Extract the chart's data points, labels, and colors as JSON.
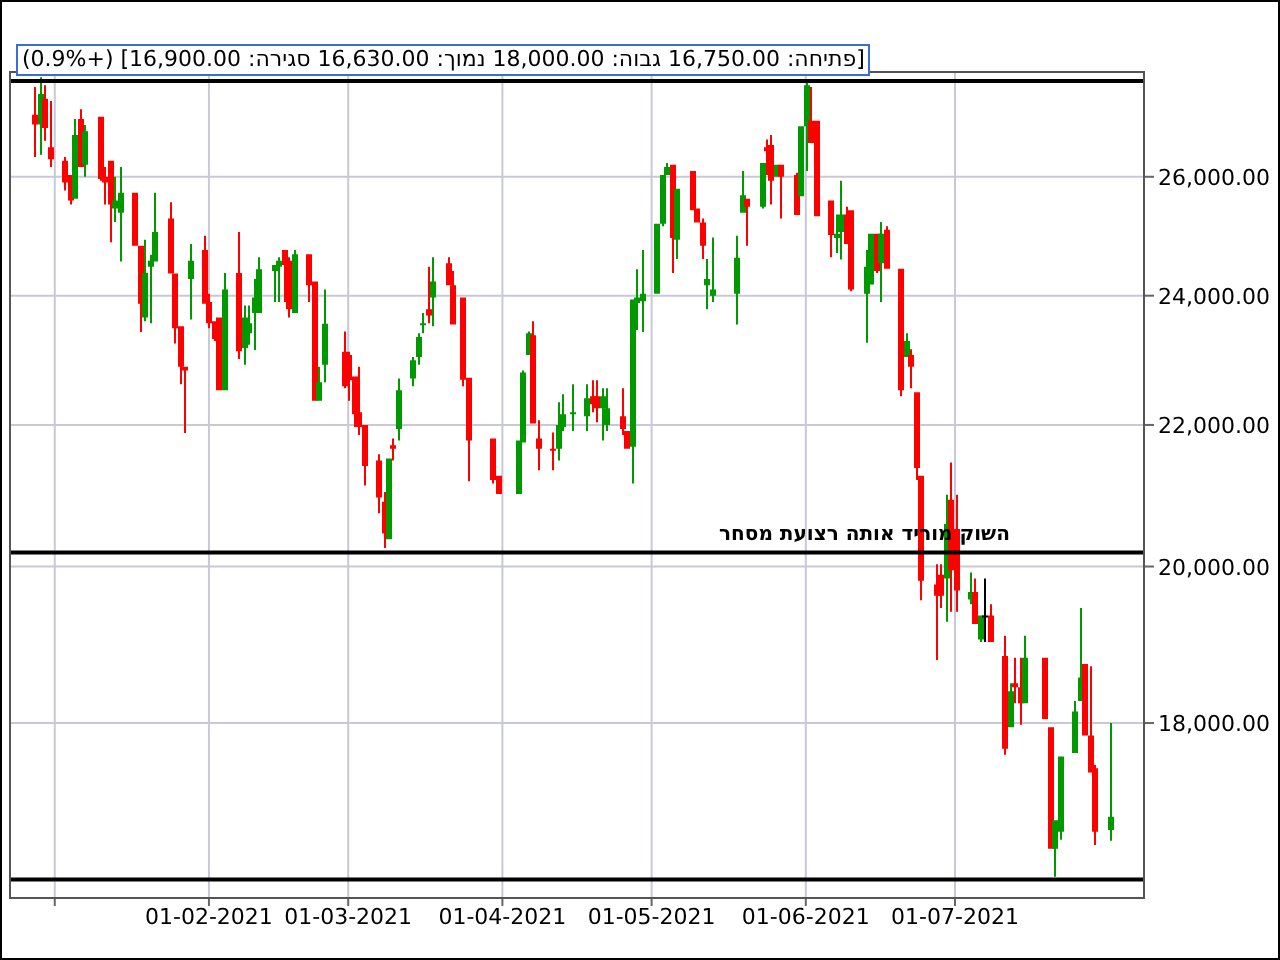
{
  "chart_data": {
    "type": "candlestick",
    "title": "[פתיחה: 16,750.00 גבוה: 18,000.00 נמוך: 16,630.00 סגירה: 16,900.00] (+0.9%)",
    "x": [
      "2020-12-28",
      "2020-12-29",
      "2020-12-30",
      "2020-12-31",
      "2021-01-03",
      "2021-01-04",
      "2021-01-05",
      "2021-01-06",
      "2021-01-07",
      "2021-01-10",
      "2021-01-11",
      "2021-01-12",
      "2021-01-13",
      "2021-01-14",
      "2021-01-17",
      "2021-01-18",
      "2021-01-19",
      "2021-01-20",
      "2021-01-21",
      "2021-01-24",
      "2021-01-25",
      "2021-01-26",
      "2021-01-27",
      "2021-01-28",
      "2021-01-31",
      "2021-02-01",
      "2021-02-02",
      "2021-02-03",
      "2021-02-04",
      "2021-02-07",
      "2021-02-08",
      "2021-02-09",
      "2021-02-10",
      "2021-02-11",
      "2021-02-14",
      "2021-02-15",
      "2021-02-16",
      "2021-02-17",
      "2021-02-18",
      "2021-02-21",
      "2021-02-22",
      "2021-02-23",
      "2021-02-24",
      "2021-02-28",
      "2021-03-01",
      "2021-03-02",
      "2021-03-03",
      "2021-03-04",
      "2021-03-07",
      "2021-03-08",
      "2021-03-09",
      "2021-03-10",
      "2021-03-11",
      "2021-03-14",
      "2021-03-15",
      "2021-03-16",
      "2021-03-17",
      "2021-03-18",
      "2021-03-21",
      "2021-03-22",
      "2021-03-24",
      "2021-03-25",
      "2021-03-30",
      "2021-03-31",
      "2021-04-04",
      "2021-04-05",
      "2021-04-06",
      "2021-04-07",
      "2021-04-08",
      "2021-04-11",
      "2021-04-12",
      "2021-04-13",
      "2021-04-15",
      "2021-04-18",
      "2021-04-19",
      "2021-04-20",
      "2021-04-21",
      "2021-04-22",
      "2021-04-25",
      "2021-04-26",
      "2021-04-27",
      "2021-04-28",
      "2021-04-29",
      "2021-05-02",
      "2021-05-03",
      "2021-05-04",
      "2021-05-05",
      "2021-05-06",
      "2021-05-09",
      "2021-05-10",
      "2021-05-11",
      "2021-05-12",
      "2021-05-13",
      "2021-05-18",
      "2021-05-19",
      "2021-05-20",
      "2021-05-23",
      "2021-05-24",
      "2021-05-25",
      "2021-05-26",
      "2021-05-27",
      "2021-05-30",
      "2021-05-31",
      "2021-06-01",
      "2021-06-02",
      "2021-06-03",
      "2021-06-06",
      "2021-06-07",
      "2021-06-08",
      "2021-06-09",
      "2021-06-10",
      "2021-06-13",
      "2021-06-14",
      "2021-06-15",
      "2021-06-16",
      "2021-06-17",
      "2021-06-20",
      "2021-06-21",
      "2021-06-22",
      "2021-06-23",
      "2021-06-24",
      "2021-06-27",
      "2021-06-28",
      "2021-06-29",
      "2021-06-30",
      "2021-07-01",
      "2021-07-04",
      "2021-07-05",
      "2021-07-06",
      "2021-07-07",
      "2021-07-08",
      "2021-07-11",
      "2021-07-12",
      "2021-07-13",
      "2021-07-14",
      "2021-07-15",
      "2021-07-19",
      "2021-07-20",
      "2021-07-21",
      "2021-07-22",
      "2021-07-25",
      "2021-07-26",
      "2021-07-27",
      "2021-07-28",
      "2021-07-29",
      "2021-08-01"
    ],
    "ohlc": [
      [
        27110,
        27620,
        26350,
        26930
      ],
      [
        26930,
        27800,
        26390,
        27490
      ],
      [
        27400,
        27650,
        26640,
        26870
      ],
      [
        26520,
        27360,
        26170,
        26310
      ],
      [
        26280,
        26350,
        25760,
        25900
      ],
      [
        26030,
        26030,
        25520,
        25590
      ],
      [
        25620,
        27030,
        25620,
        26740
      ],
      [
        27030,
        27210,
        26170,
        26170
      ],
      [
        26210,
        26920,
        26000,
        26810
      ],
      [
        27070,
        27070,
        25930,
        25960
      ],
      [
        26000,
        26170,
        25520,
        25900
      ],
      [
        26280,
        26280,
        24880,
        25520
      ],
      [
        25450,
        26000,
        25220,
        25590
      ],
      [
        25380,
        26170,
        24560,
        25720
      ],
      [
        25720,
        25720,
        24820,
        24820
      ],
      [
        24820,
        24820,
        23420,
        23870
      ],
      [
        23650,
        24920,
        23590,
        24370
      ],
      [
        24470,
        24670,
        23560,
        24570
      ],
      [
        24560,
        25720,
        24560,
        25050
      ],
      [
        25280,
        25560,
        24360,
        24360
      ],
      [
        24360,
        24360,
        23240,
        23480
      ],
      [
        23510,
        23510,
        22610,
        22880
      ],
      [
        22880,
        22880,
        21880,
        22820
      ],
      [
        24270,
        24850,
        23620,
        24570
      ],
      [
        24750,
        24990,
        23870,
        23870
      ],
      [
        23900,
        24030,
        23480,
        23560
      ],
      [
        23590,
        23590,
        23280,
        23310
      ],
      [
        23650,
        23650,
        22520,
        22520
      ],
      [
        22520,
        24370,
        22520,
        24100
      ],
      [
        24370,
        25050,
        23000,
        23120
      ],
      [
        23170,
        23840,
        22910,
        23650
      ],
      [
        23400,
        23840,
        23220,
        23560
      ],
      [
        23720,
        24270,
        23140,
        23970
      ],
      [
        23720,
        24630,
        23720,
        24430
      ],
      [
        24400,
        24500,
        23900,
        24500
      ],
      [
        24470,
        24630,
        23900,
        24570
      ],
      [
        24750,
        24750,
        23900,
        24500
      ],
      [
        24570,
        24630,
        23650,
        23780
      ],
      [
        23720,
        24750,
        23720,
        24680
      ],
      [
        24680,
        24680,
        23900,
        24170
      ],
      [
        24230,
        24230,
        22360,
        22360
      ],
      [
        22360,
        22880,
        22360,
        22640
      ],
      [
        22910,
        24100,
        22640,
        23550
      ],
      [
        23110,
        23430,
        22550,
        22580
      ],
      [
        23060,
        23110,
        22360,
        22670
      ],
      [
        22730,
        22730,
        21970,
        22160
      ],
      [
        22190,
        22880,
        21850,
        21970
      ],
      [
        22000,
        22000,
        21120,
        21400
      ],
      [
        21480,
        21570,
        20730,
        20950
      ],
      [
        20890,
        21030,
        20250,
        20450
      ],
      [
        20370,
        21510,
        20370,
        21510
      ],
      [
        21700,
        21800,
        21480,
        21650
      ],
      [
        21940,
        22700,
        21770,
        22520
      ],
      [
        22700,
        23030,
        22580,
        22980
      ],
      [
        23030,
        23400,
        22910,
        23340
      ],
      [
        23540,
        23720,
        23400,
        23560
      ],
      [
        23780,
        24470,
        23560,
        23680
      ],
      [
        23970,
        24630,
        23510,
        24230
      ],
      [
        24530,
        24630,
        24170,
        24170
      ],
      [
        24170,
        24400,
        23540,
        23540
      ],
      [
        23970,
        23970,
        22580,
        22680
      ],
      [
        22710,
        22710,
        21180,
        21770
      ],
      [
        21800,
        21800,
        21150,
        21200
      ],
      [
        21260,
        21260,
        21000,
        21000
      ],
      [
        21000,
        21770,
        21000,
        21770
      ],
      [
        21740,
        22820,
        21740,
        22790
      ],
      [
        23060,
        23430,
        23060,
        23400
      ],
      [
        23370,
        23590,
        22020,
        22020
      ],
      [
        21800,
        22070,
        21340,
        21650
      ],
      [
        21650,
        21890,
        21340,
        21620
      ],
      [
        21650,
        22340,
        21480,
        22000
      ],
      [
        21970,
        22460,
        21910,
        22160
      ],
      [
        22160,
        22610,
        21910,
        22190
      ],
      [
        22130,
        22610,
        21910,
        22400
      ],
      [
        22430,
        22670,
        22190,
        22310
      ],
      [
        22430,
        22670,
        22040,
        22250
      ],
      [
        22250,
        22550,
        21770,
        22430
      ],
      [
        22000,
        22550,
        21910,
        22250
      ],
      [
        22130,
        22550,
        21850,
        21940
      ],
      [
        21910,
        21910,
        21650,
        21650
      ],
      [
        21680,
        23940,
        21150,
        23940
      ],
      [
        23880,
        24430,
        23450,
        23970
      ],
      [
        23910,
        24750,
        23420,
        24030
      ],
      [
        24030,
        25190,
        24030,
        25190
      ],
      [
        25190,
        26030,
        25150,
        26030
      ],
      [
        26030,
        26240,
        26030,
        26170
      ],
      [
        26210,
        26210,
        24370,
        24950
      ],
      [
        24920,
        25790,
        24600,
        25790
      ],
      [
        26100,
        26100,
        25420,
        25420
      ],
      [
        25450,
        25450,
        25210,
        25210
      ],
      [
        25210,
        25280,
        24600,
        24820
      ],
      [
        24170,
        24600,
        23780,
        24270
      ],
      [
        24000,
        24960,
        23900,
        24100
      ],
      [
        24030,
        24990,
        23540,
        24620
      ],
      [
        25380,
        26100,
        25380,
        25680
      ],
      [
        25620,
        25620,
        24820,
        25480
      ],
      [
        25480,
        26240,
        25450,
        26240
      ],
      [
        26520,
        26660,
        26030,
        26450
      ],
      [
        26560,
        26740,
        25520,
        25930
      ],
      [
        26000,
        26210,
        26000,
        26210
      ],
      [
        26210,
        26210,
        25280,
        26000
      ],
      [
        26030,
        26070,
        25340,
        25340
      ],
      [
        25660,
        26900,
        25660,
        26900
      ],
      [
        26900,
        27730,
        26100,
        27650
      ],
      [
        27000,
        27620,
        26600,
        26600
      ],
      [
        27000,
        27000,
        25320,
        25320
      ],
      [
        25590,
        25590,
        24630,
        25000
      ],
      [
        24950,
        25350,
        24700,
        25020
      ],
      [
        25050,
        25930,
        24590,
        25350
      ],
      [
        25350,
        25480,
        24850,
        24850
      ],
      [
        25420,
        25420,
        24070,
        24100
      ],
      [
        24030,
        24750,
        23250,
        24470
      ],
      [
        24180,
        25020,
        24180,
        25020
      ],
      [
        25020,
        25020,
        24370,
        24400
      ],
      [
        24530,
        25220,
        23900,
        25020
      ],
      [
        25090,
        25150,
        24440,
        24440
      ],
      [
        24440,
        24440,
        22430,
        22520
      ],
      [
        23030,
        23400,
        23030,
        23280
      ],
      [
        23060,
        23150,
        22550,
        22880
      ],
      [
        22490,
        22490,
        21200,
        21370
      ],
      [
        21260,
        21260,
        19550,
        19810
      ],
      [
        19760,
        20030,
        18780,
        19610
      ],
      [
        19890,
        20030,
        19450,
        19610
      ],
      [
        19840,
        20990,
        19270,
        20580
      ],
      [
        20920,
        21450,
        19400,
        19950
      ],
      [
        20510,
        20990,
        19400,
        19680
      ],
      [
        19560,
        19920,
        19500,
        19660
      ],
      [
        19660,
        19840,
        19240,
        19240
      ],
      [
        19040,
        19350,
        19010,
        19350
      ],
      [
        19350,
        19840,
        19010,
        19350
      ],
      [
        19350,
        19500,
        19010,
        19010
      ],
      [
        18830,
        19090,
        17620,
        17690
      ],
      [
        17950,
        18490,
        17950,
        18390
      ],
      [
        18490,
        18810,
        18240,
        18440
      ],
      [
        18440,
        18810,
        17980,
        18240
      ],
      [
        18240,
        19090,
        18240,
        18810
      ],
      [
        18810,
        18810,
        18050,
        18050
      ],
      [
        17950,
        17950,
        16540,
        16540
      ],
      [
        16540,
        16860,
        16230,
        16860
      ],
      [
        16730,
        17600,
        16640,
        17600
      ],
      [
        17640,
        18270,
        17640,
        18140
      ],
      [
        18270,
        19450,
        18270,
        18560
      ],
      [
        18730,
        18730,
        17850,
        17850
      ],
      [
        17850,
        18700,
        17410,
        17410
      ],
      [
        17460,
        17500,
        16580,
        16730
      ],
      [
        16750,
        18000,
        16630,
        16900
      ]
    ],
    "colors": [
      "#ff0000",
      "#009900",
      "#ff0000",
      "#ff0000",
      "#ff0000",
      "#ff0000",
      "#009900",
      "#ff0000",
      "#009900",
      "#ff0000",
      "#ff0000",
      "#ff0000",
      "#009900",
      "#009900",
      "#ff0000",
      "#ff0000",
      "#009900",
      "#009900",
      "#009900",
      "#ff0000",
      "#ff0000",
      "#ff0000",
      "#ff0000",
      "#009900",
      "#ff0000",
      "#ff0000",
      "#ff0000",
      "#ff0000",
      "#009900",
      "#ff0000",
      "#009900",
      "#009900",
      "#009900",
      "#009900",
      "#009900",
      "#009900",
      "#ff0000",
      "#ff0000",
      "#009900",
      "#ff0000",
      "#ff0000",
      "#009900",
      "#009900",
      "#ff0000",
      "#ff0000",
      "#ff0000",
      "#ff0000",
      "#ff0000",
      "#ff0000",
      "#ff0000",
      "#009900",
      "#ff0000",
      "#009900",
      "#009900",
      "#009900",
      "#009900",
      "#ff0000",
      "#009900",
      "#ff0000",
      "#ff0000",
      "#ff0000",
      "#ff0000",
      "#ff0000",
      "#ff0000",
      "#009900",
      "#009900",
      "#009900",
      "#ff0000",
      "#ff0000",
      "#ff0000",
      "#009900",
      "#009900",
      "#009900",
      "#009900",
      "#ff0000",
      "#ff0000",
      "#009900",
      "#009900",
      "#ff0000",
      "#ff0000",
      "#009900",
      "#009900",
      "#009900",
      "#009900",
      "#009900",
      "#009900",
      "#ff0000",
      "#009900",
      "#ff0000",
      "#ff0000",
      "#ff0000",
      "#009900",
      "#009900",
      "#009900",
      "#009900",
      "#ff0000",
      "#009900",
      "#ff0000",
      "#ff0000",
      "#009900",
      "#ff0000",
      "#ff0000",
      "#009900",
      "#009900",
      "#ff0000",
      "#ff0000",
      "#ff0000",
      "#009900",
      "#009900",
      "#ff0000",
      "#ff0000",
      "#009900",
      "#009900",
      "#ff0000",
      "#009900",
      "#ff0000",
      "#ff0000",
      "#009900",
      "#ff0000",
      "#ff0000",
      "#ff0000",
      "#ff0000",
      "#ff0000",
      "#009900",
      "#ff0000",
      "#ff0000",
      "#009900",
      "#ff0000",
      "#009900",
      "#000000",
      "#ff0000",
      "#ff0000",
      "#009900",
      "#ff0000",
      "#ff0000",
      "#009900",
      "#ff0000",
      "#ff0000",
      "#009900",
      "#009900",
      "#009900",
      "#009900",
      "#ff0000",
      "#ff0000",
      "#ff0000",
      "#009900"
    ],
    "xlim": [
      "2020-12-23",
      "2021-08-08"
    ],
    "ylim": [
      16000,
      27900
    ],
    "xticks": [
      {
        "value": "2021-01-01",
        "label": null
      },
      {
        "value": "2021-02-01",
        "label": "01-02-2021"
      },
      {
        "value": "2021-03-01",
        "label": "01-03-2021"
      },
      {
        "value": "2021-04-01",
        "label": "01-04-2021"
      },
      {
        "value": "2021-05-01",
        "label": "01-05-2021"
      },
      {
        "value": "2021-06-01",
        "label": "01-06-2021"
      },
      {
        "value": "2021-07-01",
        "label": "01-07-2021"
      }
    ],
    "yticks": [
      {
        "value": 18000,
        "label": "18,000.00"
      },
      {
        "value": 20000,
        "label": "20,000.00"
      },
      {
        "value": 22000,
        "label": "22,000.00"
      },
      {
        "value": 24000,
        "label": "24,000.00"
      },
      {
        "value": 26000,
        "label": "26,000.00"
      }
    ],
    "log": "y",
    "grid": true,
    "ref_lines": [
      {
        "axis": "y",
        "value": 27730,
        "color": "#000000"
      },
      {
        "axis": "y",
        "value": 20190,
        "color": "#000000",
        "label": "השוק מוריד אותה רצועת מסחר"
      },
      {
        "axis": "y",
        "value": 16200,
        "color": "#000000"
      }
    ]
  }
}
